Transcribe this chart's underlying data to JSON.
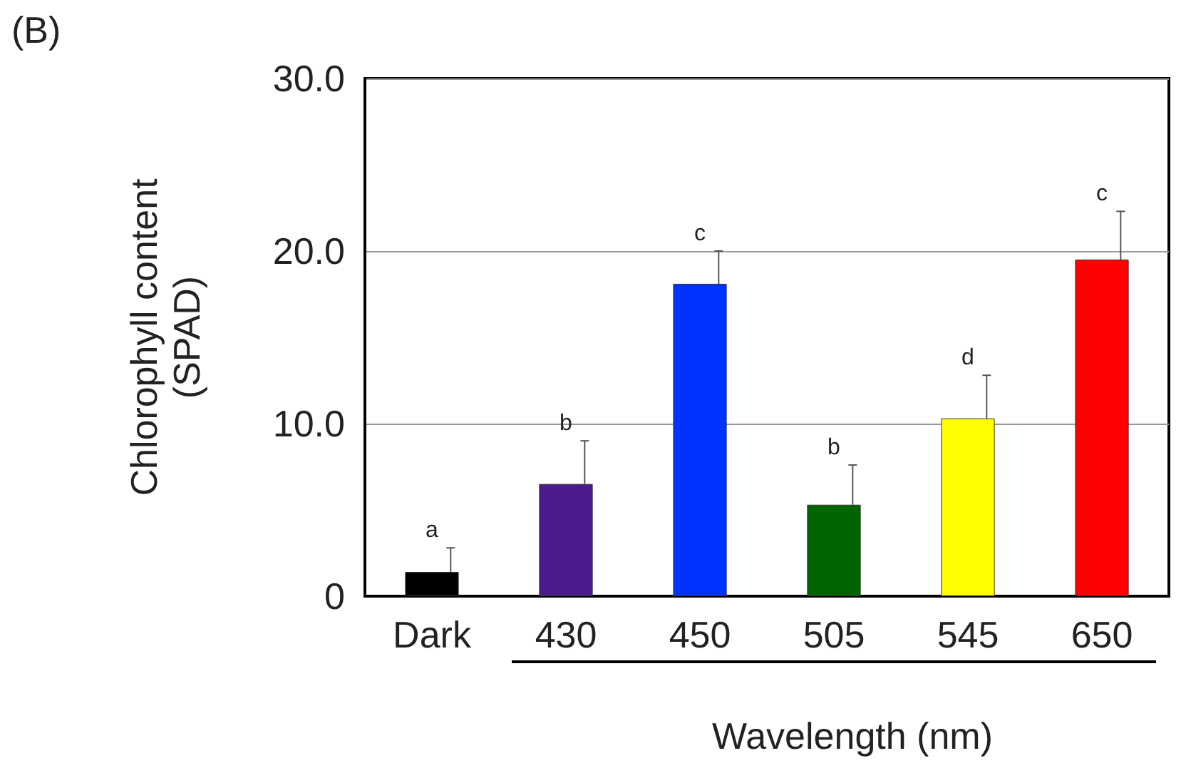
{
  "chart_data": {
    "type": "bar",
    "ylabel": "Chlorophyll content\n(SPAD)",
    "xlabel": "Wavelength (nm)",
    "categories": [
      "Dark",
      "430",
      "450",
      "505",
      "545",
      "650"
    ],
    "values": [
      1.4,
      6.5,
      18.1,
      5.3,
      10.3,
      19.5
    ],
    "colors": [
      "#000000",
      "#4b1a8c",
      "#0033ff",
      "#006400",
      "#ffff00",
      "#ff0000"
    ],
    "errors": [
      [
        1.4,
        2.8
      ],
      [
        6.5,
        9.0
      ],
      [
        18.1,
        20.0
      ],
      [
        5.3,
        7.6
      ],
      [
        10.3,
        12.8
      ],
      [
        19.5,
        22.3
      ]
    ],
    "ylim": [
      0,
      30
    ],
    "yticks": [
      0,
      {
        "value": 10,
        "label": "10.0"
      },
      {
        "value": 20,
        "label": "20.0"
      },
      {
        "value": 30,
        "label": "30.0"
      }
    ],
    "grid": "y",
    "annotations": [
      "(B)",
      "a",
      "b",
      "c",
      "b",
      "d",
      "c"
    ]
  }
}
